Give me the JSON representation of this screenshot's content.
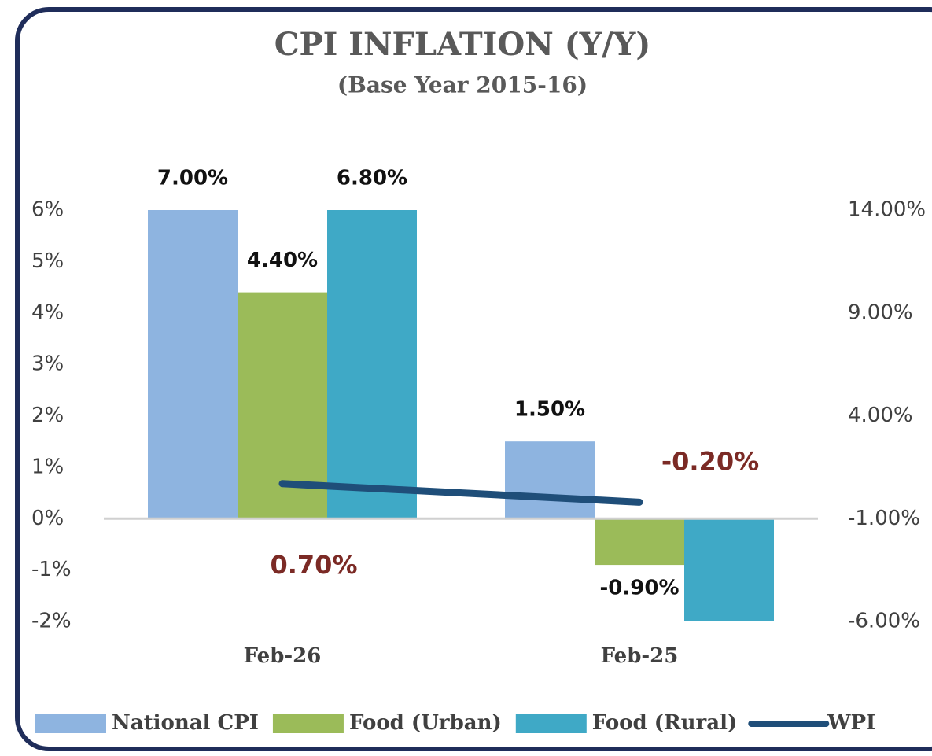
{
  "chart_data": {
    "type": "bar",
    "title": "CPI INFLATION (Y/Y)",
    "subtitle": "(Base Year 2015-16)",
    "categories": [
      "Feb-26",
      "Feb-25"
    ],
    "series": [
      {
        "name": "National CPI",
        "color": "#8eb4e0",
        "values": [
          7.0,
          1.5
        ],
        "value_labels": [
          "7.00%",
          "1.50%"
        ]
      },
      {
        "name": "Food (Urban)",
        "color": "#9bbb59",
        "values": [
          4.4,
          -0.9
        ],
        "value_labels": [
          "4.40%",
          "-0.90%"
        ]
      },
      {
        "name": "Food (Rural)",
        "color": "#3fa9c6",
        "values": [
          6.8,
          -2.0
        ],
        "value_labels": [
          "6.80%",
          null
        ]
      },
      {
        "name": "WPI",
        "type": "line",
        "axis": "y2",
        "color": "#1f4e79",
        "values": [
          0.7,
          -0.2
        ],
        "value_labels": [
          "0.70%",
          "-0.20%"
        ]
      }
    ],
    "ylim": [
      -2,
      6
    ],
    "yticks": [
      {
        "value": -2,
        "label": "-2%"
      },
      {
        "value": -1,
        "label": "-1%"
      },
      {
        "value": 0,
        "label": "0%"
      },
      {
        "value": 1,
        "label": "1%"
      },
      {
        "value": 2,
        "label": "2%"
      },
      {
        "value": 3,
        "label": "3%"
      },
      {
        "value": 4,
        "label": "4%"
      },
      {
        "value": 5,
        "label": "5%"
      },
      {
        "value": 6,
        "label": "6%"
      }
    ],
    "y2lim": [
      -6,
      14
    ],
    "y2ticks": [
      {
        "value": -6,
        "label": "-6.00%"
      },
      {
        "value": -1,
        "label": "-1.00%"
      },
      {
        "value": 4,
        "label": "4.00%"
      },
      {
        "value": 9,
        "label": "9.00%"
      },
      {
        "value": 14,
        "label": "14.00%"
      }
    ],
    "legend": "bottom"
  }
}
